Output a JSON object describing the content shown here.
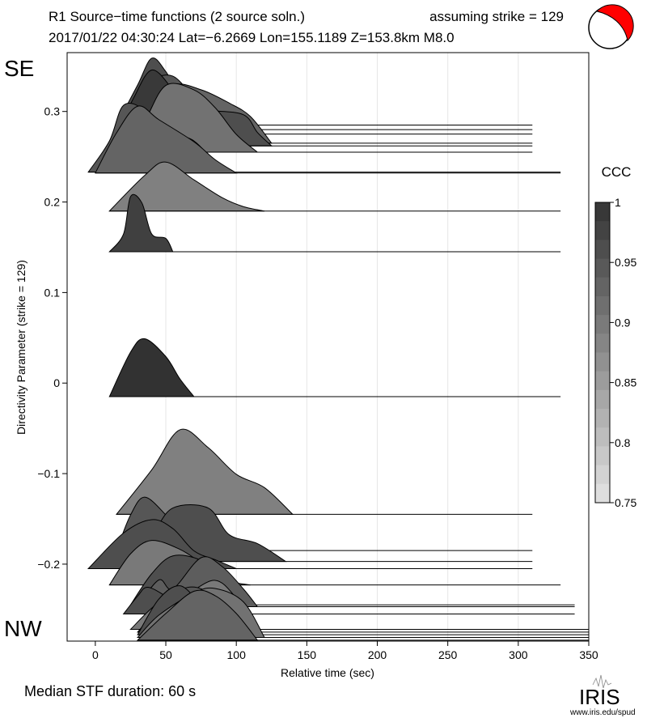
{
  "title_line1": "R1 Source−time functions (2 source soln.)",
  "title_strike": "assuming strike = 129",
  "title_line2": "2017/01/22 04:30:24  Lat=−6.2669 Lon=155.1189  Z=153.8km  M8.0",
  "label_se": "SE",
  "label_nw": "NW",
  "median_text": "Median STF duration: 60 s",
  "logo": {
    "text": "IRIS",
    "url": "www.iris.edu/spud"
  },
  "colors": {
    "beachball_red": "#ff0000",
    "grid": "#e6e6e6"
  },
  "chart_data": {
    "type": "ridgeline",
    "xlabel": "Relative time (sec)",
    "ylabel": "Directivity Parameter (strike = 129)",
    "xlim": [
      -20,
      350
    ],
    "ylim": [
      -0.285,
      0.365
    ],
    "x_ticks": [
      0,
      50,
      100,
      150,
      200,
      250,
      300,
      350
    ],
    "x_tick_labels": [
      "0",
      "50",
      "100",
      "150",
      "200",
      "250",
      "300",
      "350"
    ],
    "y_ticks": [
      0.3,
      0.2,
      0.1,
      0,
      -0.1,
      -0.2
    ],
    "y_tick_labels": [
      "0.3",
      "0.2",
      "0.1",
      "0",
      "−0.1",
      "−0.2"
    ],
    "colorbar": {
      "label": "CCC",
      "min": 0.75,
      "max": 1.0,
      "ticks": [
        1,
        0.95,
        0.9,
        0.85,
        0.8,
        0.75
      ],
      "tick_labels": [
        "1",
        "0.95",
        "0.9",
        "0.85",
        "0.8",
        "0.75"
      ]
    },
    "series": [
      {
        "d": 0.285,
        "ccc": 0.96,
        "t0": 20,
        "t1": 310,
        "pts": [
          [
            -5,
            0
          ],
          [
            10,
            0.45
          ],
          [
            20,
            0.75
          ],
          [
            30,
            0.6
          ],
          [
            40,
            0.35
          ],
          [
            60,
            0.15
          ],
          [
            80,
            0
          ]
        ]
      },
      {
        "d": 0.28,
        "ccc": 0.95,
        "t0": 15,
        "t1": 310,
        "pts": [
          [
            0,
            0
          ],
          [
            15,
            0.3
          ],
          [
            25,
            0.55
          ],
          [
            40,
            0.6
          ],
          [
            55,
            0.35
          ],
          [
            65,
            0.15
          ],
          [
            80,
            0
          ]
        ]
      },
      {
        "d": 0.275,
        "ccc": 0.99,
        "t0": 15,
        "t1": 310,
        "pts": [
          [
            0,
            0
          ],
          [
            12,
            0.4
          ],
          [
            25,
            0.72
          ],
          [
            40,
            0.5
          ],
          [
            50,
            0.3
          ],
          [
            60,
            0.1
          ],
          [
            75,
            0
          ]
        ]
      },
      {
        "d": 0.265,
        "ccc": 0.93,
        "t0": 25,
        "t1": 310,
        "pts": [
          [
            0,
            0
          ],
          [
            15,
            0.35
          ],
          [
            30,
            0.65
          ],
          [
            50,
            0.6
          ],
          [
            70,
            0.45
          ],
          [
            85,
            0.3
          ],
          [
            100,
            0
          ]
        ]
      },
      {
        "d": 0.262,
        "ccc": 0.96,
        "t0": 25,
        "t1": 310,
        "pts": [
          [
            0,
            0
          ],
          [
            15,
            0.35
          ],
          [
            35,
            0.45
          ],
          [
            55,
            0.4
          ],
          [
            80,
            0.35
          ],
          [
            90,
            0.15
          ],
          [
            100,
            0
          ]
        ]
      },
      {
        "d": 0.255,
        "ccc": 0.91,
        "t0": 25,
        "t1": 310,
        "pts": [
          [
            -5,
            0
          ],
          [
            10,
            0.35
          ],
          [
            25,
            0.75
          ],
          [
            45,
            0.7
          ],
          [
            60,
            0.5
          ],
          [
            75,
            0.2
          ],
          [
            90,
            0
          ]
        ]
      },
      {
        "d": 0.233,
        "ccc": 0.95,
        "t0": 0,
        "t1": 330,
        "pts": [
          [
            -5,
            0
          ],
          [
            10,
            0.35
          ],
          [
            20,
            0.75
          ],
          [
            35,
            0.7
          ],
          [
            50,
            0.45
          ],
          [
            70,
            0.35
          ],
          [
            90,
            0
          ]
        ]
      },
      {
        "d": 0.232,
        "ccc": 0.93,
        "t0": 0,
        "t1": 330,
        "pts": [
          [
            0,
            0
          ],
          [
            15,
            0.45
          ],
          [
            30,
            0.75
          ],
          [
            45,
            0.6
          ],
          [
            70,
            0.35
          ],
          [
            85,
            0.15
          ],
          [
            100,
            0
          ]
        ]
      },
      {
        "d": 0.19,
        "ccc": 0.89,
        "t0": 15,
        "t1": 330,
        "pts": [
          [
            -5,
            0
          ],
          [
            20,
            0.4
          ],
          [
            35,
            0.55
          ],
          [
            55,
            0.35
          ],
          [
            75,
            0.15
          ],
          [
            90,
            0.05
          ],
          [
            105,
            0
          ]
        ]
      },
      {
        "d": 0.145,
        "ccc": 0.98,
        "t0": 15,
        "t1": 330,
        "pts": [
          [
            -5,
            0
          ],
          [
            5,
            0.2
          ],
          [
            10,
            0.62
          ],
          [
            18,
            0.55
          ],
          [
            25,
            0.2
          ],
          [
            35,
            0.15
          ],
          [
            40,
            0
          ]
        ]
      },
      {
        "d": -0.015,
        "ccc": 1.0,
        "t0": 15,
        "t1": 330,
        "pts": [
          [
            -5,
            0
          ],
          [
            10,
            0.5
          ],
          [
            20,
            0.65
          ],
          [
            35,
            0.45
          ],
          [
            45,
            0.2
          ],
          [
            55,
            0
          ]
        ]
      },
      {
        "d": -0.145,
        "ccc": 0.89,
        "t0": 20,
        "t1": 310,
        "pts": [
          [
            -5,
            0
          ],
          [
            20,
            0.5
          ],
          [
            40,
            0.95
          ],
          [
            60,
            0.75
          ],
          [
            80,
            0.45
          ],
          [
            100,
            0.3
          ],
          [
            120,
            0
          ]
        ]
      },
      {
        "d": -0.185,
        "ccc": 0.95,
        "t0": 20,
        "t1": 310,
        "pts": [
          [
            -5,
            0
          ],
          [
            5,
            0.4
          ],
          [
            15,
            0.6
          ],
          [
            30,
            0.4
          ],
          [
            40,
            0.2
          ],
          [
            50,
            0
          ]
        ]
      },
      {
        "d": -0.197,
        "ccc": 0.96,
        "t0": 25,
        "t1": 310,
        "pts": [
          [
            -5,
            0
          ],
          [
            15,
            0.3
          ],
          [
            30,
            0.6
          ],
          [
            55,
            0.6
          ],
          [
            70,
            0.3
          ],
          [
            90,
            0.2
          ],
          [
            110,
            0
          ]
        ]
      },
      {
        "d": -0.205,
        "ccc": 0.96,
        "t0": 0,
        "t1": 310,
        "pts": [
          [
            -5,
            0
          ],
          [
            20,
            0.4
          ],
          [
            40,
            0.55
          ],
          [
            55,
            0.45
          ],
          [
            70,
            0.2
          ],
          [
            85,
            0.1
          ],
          [
            100,
            0
          ]
        ]
      },
      {
        "d": -0.223,
        "ccc": 0.9,
        "t0": 15,
        "t1": 330,
        "pts": [
          [
            -5,
            0
          ],
          [
            10,
            0.35
          ],
          [
            25,
            0.5
          ],
          [
            45,
            0.4
          ],
          [
            60,
            0.25
          ],
          [
            80,
            0.05
          ],
          [
            95,
            0
          ]
        ]
      },
      {
        "d": -0.245,
        "ccc": 0.96,
        "t0": 25,
        "t1": 340,
        "pts": [
          [
            0,
            0
          ],
          [
            15,
            0.35
          ],
          [
            30,
            0.55
          ],
          [
            50,
            0.5
          ],
          [
            65,
            0.3
          ],
          [
            80,
            0
          ]
        ]
      },
      {
        "d": -0.247,
        "ccc": 0.94,
        "t0": 25,
        "t1": 340,
        "pts": [
          [
            5,
            0
          ],
          [
            20,
            0.3
          ],
          [
            30,
            0.2
          ],
          [
            50,
            0.55
          ],
          [
            65,
            0.45
          ],
          [
            80,
            0.2
          ],
          [
            90,
            0
          ]
        ]
      },
      {
        "d": -0.255,
        "ccc": 0.96,
        "t0": 25,
        "t1": 340,
        "pts": [
          [
            -5,
            0
          ],
          [
            5,
            0.2
          ],
          [
            12,
            0.3
          ],
          [
            25,
            0.2
          ],
          [
            35,
            0.1
          ],
          [
            45,
            0
          ]
        ]
      },
      {
        "d": -0.272,
        "ccc": 0.9,
        "t0": 25,
        "t1": 350,
        "pts": [
          [
            0,
            0
          ],
          [
            20,
            0.3
          ],
          [
            40,
            0.4
          ],
          [
            60,
            0.55
          ],
          [
            75,
            0.35
          ],
          [
            90,
            0
          ]
        ]
      },
      {
        "d": -0.275,
        "ccc": 0.95,
        "t0": 30,
        "t1": 350,
        "pts": [
          [
            0,
            0
          ],
          [
            20,
            0.35
          ],
          [
            35,
            0.5
          ],
          [
            50,
            0.45
          ],
          [
            70,
            0.2
          ],
          [
            80,
            0
          ]
        ]
      },
      {
        "d": -0.278,
        "ccc": 0.96,
        "t0": 30,
        "t1": 350,
        "pts": [
          [
            0,
            0
          ],
          [
            15,
            0.4
          ],
          [
            30,
            0.55
          ],
          [
            45,
            0.35
          ],
          [
            60,
            0.2
          ],
          [
            70,
            0
          ]
        ]
      },
      {
        "d": -0.281,
        "ccc": 0.91,
        "t0": 30,
        "t1": 350,
        "pts": [
          [
            0,
            0
          ],
          [
            15,
            0.25
          ],
          [
            40,
            0.5
          ],
          [
            55,
            0.55
          ],
          [
            75,
            0.4
          ],
          [
            90,
            0
          ]
        ]
      },
      {
        "d": -0.284,
        "ccc": 0.93,
        "t0": 30,
        "t1": 350,
        "pts": [
          [
            0,
            0
          ],
          [
            20,
            0.3
          ],
          [
            40,
            0.55
          ],
          [
            55,
            0.5
          ],
          [
            70,
            0.3
          ],
          [
            85,
            0
          ]
        ]
      }
    ]
  }
}
